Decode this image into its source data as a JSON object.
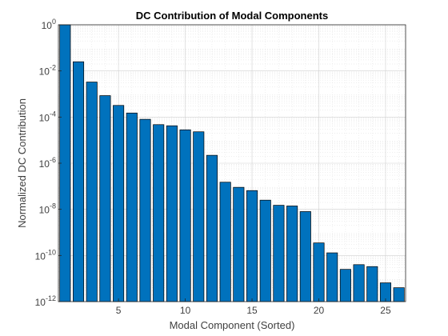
{
  "chart_data": {
    "type": "bar",
    "title": "DC Contribution of Modal Components",
    "xlabel": "Modal Component (Sorted)",
    "ylabel": "Normalized DC Contribution",
    "yscale": "log",
    "xlim": [
      0.5,
      26.5
    ],
    "ylim": [
      1e-12,
      1
    ],
    "x_ticks": [
      5,
      10,
      15,
      20,
      25
    ],
    "y_ticks": [
      {
        "base": "10",
        "exp": "0",
        "value": 1
      },
      {
        "base": "10",
        "exp": "-2",
        "value": 0.01
      },
      {
        "base": "10",
        "exp": "-4",
        "value": 0.0001
      },
      {
        "base": "10",
        "exp": "-6",
        "value": 1e-06
      },
      {
        "base": "10",
        "exp": "-8",
        "value": 1e-08
      },
      {
        "base": "10",
        "exp": "-10",
        "value": 1e-10
      },
      {
        "base": "10",
        "exp": "-12",
        "value": 1e-12
      }
    ],
    "grid": true,
    "minor_grid": true,
    "bar_color": "#0072BD",
    "edge_color": "#000000",
    "categories": [
      1,
      2,
      3,
      4,
      5,
      6,
      7,
      8,
      9,
      10,
      11,
      12,
      13,
      14,
      15,
      16,
      17,
      18,
      19,
      20,
      21,
      22,
      23,
      24,
      25,
      26
    ],
    "values": [
      1,
      0.025,
      0.0033,
      0.00085,
      0.00032,
      0.00015,
      8e-05,
      4.7e-05,
      4.2e-05,
      2.8e-05,
      2.3e-05,
      2.2e-06,
      1.5e-07,
      9e-08,
      6.5e-08,
      2.5e-08,
      1.5e-08,
      1.4e-08,
      8e-09,
      3.5e-10,
      1.3e-10,
      2.5e-11,
      4e-11,
      3.3e-11,
      6.5e-12,
      4e-12
    ]
  }
}
